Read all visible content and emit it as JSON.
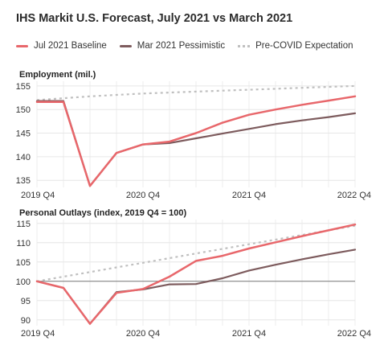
{
  "title": "IHS Markit U.S. Forecast, July 2021 vs March 2021",
  "legend": [
    {
      "label": "Jul 2021 Baseline",
      "color": "#e8676b",
      "style": "solid"
    },
    {
      "label": "Mar 2021 Pessimistic",
      "color": "#7d5b5d",
      "style": "solid"
    },
    {
      "label": "Pre-COVID Expectation",
      "color": "#c0c0c0",
      "style": "dotted"
    }
  ],
  "chart_data": [
    {
      "type": "line",
      "title": "Employment (mil.)",
      "x": [
        0,
        1,
        2,
        3,
        4,
        5,
        6,
        7,
        8,
        9,
        10,
        11,
        12
      ],
      "xlim": [
        0,
        12
      ],
      "xticks": [
        {
          "value": 0,
          "label": "2019 Q4"
        },
        {
          "value": 4,
          "label": "2020 Q4"
        },
        {
          "value": 8,
          "label": "2021 Q4"
        },
        {
          "value": 12,
          "label": "2022 Q4"
        }
      ],
      "ylim": [
        133.5,
        156
      ],
      "yticks": [
        135,
        140,
        145,
        150,
        155
      ],
      "grid": true,
      "series": [
        {
          "name": "Jul 2021 Baseline",
          "color": "#e8676b",
          "style": "solid",
          "width": 2.5,
          "values": [
            151.6,
            151.6,
            133.8,
            140.8,
            142.6,
            143.2,
            145.0,
            147.2,
            148.9,
            150.0,
            151.0,
            151.9,
            152.8
          ]
        },
        {
          "name": "Mar 2021 Pessimistic",
          "color": "#7d5b5d",
          "style": "solid",
          "width": 2.2,
          "values": [
            151.8,
            151.8,
            133.8,
            140.8,
            142.6,
            142.9,
            143.9,
            144.9,
            145.9,
            146.9,
            147.7,
            148.4,
            149.2
          ]
        },
        {
          "name": "Pre-COVID Expectation",
          "color": "#c0c0c0",
          "style": "dotted",
          "width": 2.2,
          "values": [
            152.0,
            152.4,
            152.8,
            153.1,
            153.4,
            153.6,
            153.8,
            154.0,
            154.2,
            154.4,
            154.6,
            154.8,
            155.0
          ]
        }
      ]
    },
    {
      "type": "line",
      "title": "Personal Outlays (index, 2019 Q4 = 100)",
      "x": [
        0,
        1,
        2,
        3,
        4,
        5,
        6,
        7,
        8,
        9,
        10,
        11,
        12
      ],
      "xlim": [
        0,
        12
      ],
      "xticks": [
        {
          "value": 0,
          "label": "2019 Q4"
        },
        {
          "value": 4,
          "label": "2020 Q4"
        },
        {
          "value": 8,
          "label": "2021 Q4"
        },
        {
          "value": 12,
          "label": "2022 Q4"
        }
      ],
      "ylim": [
        88.5,
        116
      ],
      "yticks": [
        90,
        95,
        100,
        105,
        110,
        115
      ],
      "baseline": 100,
      "grid": true,
      "series": [
        {
          "name": "Jul 2021 Baseline",
          "color": "#e8676b",
          "style": "solid",
          "width": 2.5,
          "values": [
            100.0,
            98.3,
            89.0,
            97.0,
            98.0,
            101.2,
            105.3,
            106.6,
            108.5,
            110.1,
            111.7,
            113.2,
            114.7
          ]
        },
        {
          "name": "Mar 2021 Pessimistic",
          "color": "#7d5b5d",
          "style": "solid",
          "width": 2.2,
          "values": [
            100.0,
            98.3,
            89.0,
            97.2,
            97.9,
            99.2,
            99.3,
            100.8,
            102.8,
            104.3,
            105.7,
            107.0,
            108.2
          ]
        },
        {
          "name": "Pre-COVID Expectation",
          "color": "#c0c0c0",
          "style": "dotted",
          "width": 2.2,
          "values": [
            100.0,
            101.2,
            102.4,
            103.6,
            104.8,
            106.0,
            107.2,
            108.4,
            109.6,
            110.8,
            112.0,
            113.2,
            114.4
          ]
        }
      ]
    }
  ]
}
